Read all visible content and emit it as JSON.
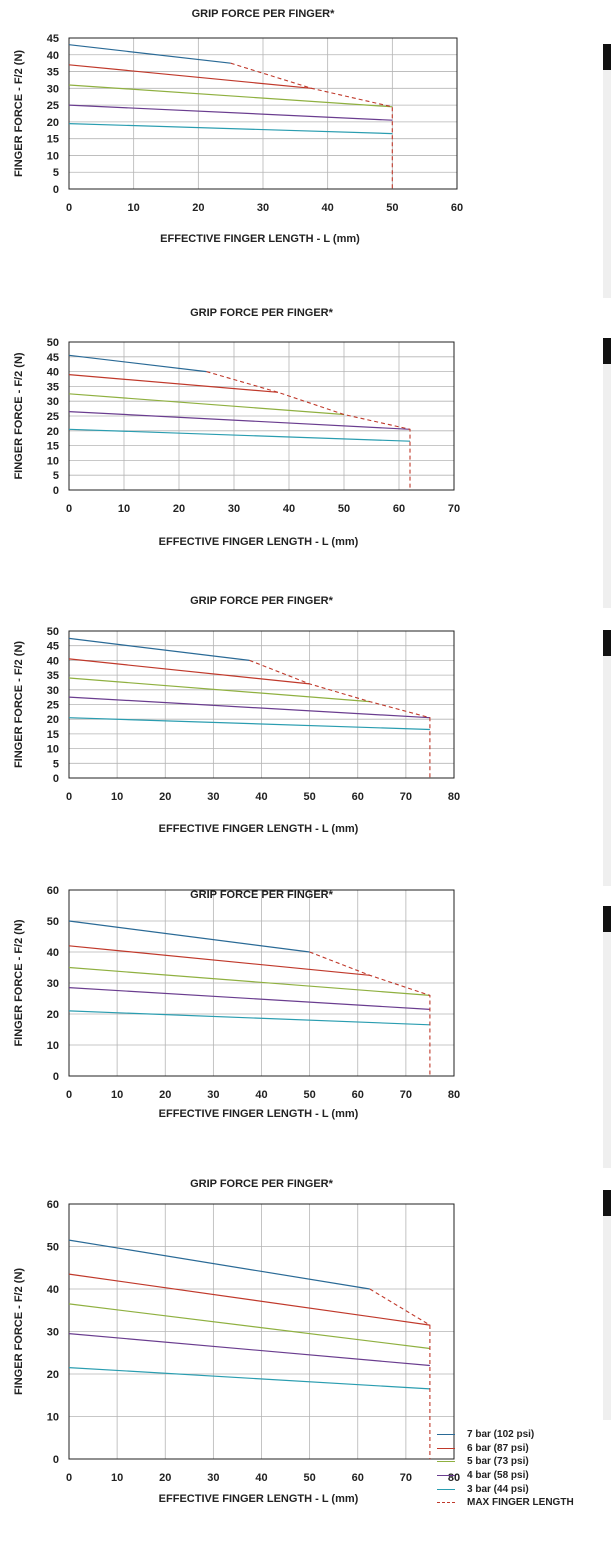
{
  "colors": {
    "7 bar (102 psi)": "#2a6a96",
    "6 bar (87 psi)": "#c0392b",
    "5 bar (73 psi)": "#8fb040",
    "4 bar (58 psi)": "#6a3d8f",
    "3 bar (44 psi)": "#2a9db0",
    "MAX FINGER LENGTH": "#c0392b",
    "grid": "#b5b5b5",
    "side_panel": "#efefef",
    "side_panel_header": "#111111"
  },
  "legend": [
    {
      "label": "7 bar (102 psi)",
      "style": "solid"
    },
    {
      "label": "6 bar (87 psi)",
      "style": "solid"
    },
    {
      "label": "5 bar (73 psi)",
      "style": "solid"
    },
    {
      "label": "4 bar (58 psi)",
      "style": "solid"
    },
    {
      "label": "3 bar (44 psi)",
      "style": "solid"
    },
    {
      "label": "MAX FINGER LENGTH",
      "style": "dashed"
    }
  ],
  "chart_data": [
    {
      "type": "line",
      "title": "GRIP FORCE PER FINGER*",
      "xlabel": "EFFECTIVE FINGER LENGTH - L (mm)",
      "ylabel": "FINGER FORCE - F/2 (N)",
      "xlim": [
        0,
        60
      ],
      "ylim": [
        0,
        45
      ],
      "xticks": [
        0,
        10,
        20,
        30,
        40,
        50,
        60
      ],
      "yticks": [
        0,
        5,
        10,
        15,
        20,
        25,
        30,
        35,
        40,
        45
      ],
      "grid": true,
      "series": [
        {
          "name": "7 bar (102 psi)",
          "x": [
            0,
            25
          ],
          "y": [
            43,
            37.5
          ]
        },
        {
          "name": "6 bar (87 psi)",
          "x": [
            0,
            37.5
          ],
          "y": [
            37,
            30
          ]
        },
        {
          "name": "5 bar (73 psi)",
          "x": [
            0,
            50
          ],
          "y": [
            31,
            24.5
          ]
        },
        {
          "name": "4 bar (58 psi)",
          "x": [
            0,
            50
          ],
          "y": [
            25,
            20.5
          ]
        },
        {
          "name": "3 bar (44 psi)",
          "x": [
            0,
            50
          ],
          "y": [
            19.5,
            16.5
          ]
        }
      ],
      "max_finger_length": {
        "x": [
          25,
          37.5,
          50,
          50
        ],
        "y": [
          37.5,
          30,
          24.5,
          0
        ]
      }
    },
    {
      "type": "line",
      "title": "GRIP FORCE PER FINGER*",
      "xlabel": "EFFECTIVE FINGER LENGTH - L (mm)",
      "ylabel": "FINGER FORCE - F/2 (N)",
      "xlim": [
        0,
        70
      ],
      "ylim": [
        0,
        50
      ],
      "xticks": [
        0,
        10,
        20,
        30,
        40,
        50,
        60,
        70
      ],
      "yticks": [
        0,
        5,
        10,
        15,
        20,
        25,
        30,
        35,
        40,
        45,
        50
      ],
      "grid": true,
      "series": [
        {
          "name": "7 bar (102 psi)",
          "x": [
            0,
            25
          ],
          "y": [
            45.5,
            40
          ]
        },
        {
          "name": "6 bar (87 psi)",
          "x": [
            0,
            38
          ],
          "y": [
            39,
            33
          ]
        },
        {
          "name": "5 bar (73 psi)",
          "x": [
            0,
            50
          ],
          "y": [
            32.5,
            25.5
          ]
        },
        {
          "name": "4 bar (58 psi)",
          "x": [
            0,
            62
          ],
          "y": [
            26.5,
            20.5
          ]
        },
        {
          "name": "3 bar (44 psi)",
          "x": [
            0,
            62
          ],
          "y": [
            20.5,
            16.5
          ]
        }
      ],
      "max_finger_length": {
        "x": [
          25,
          38,
          50,
          62,
          62
        ],
        "y": [
          40,
          33,
          25.5,
          20.5,
          0
        ]
      }
    },
    {
      "type": "line",
      "title": "GRIP FORCE PER FINGER*",
      "xlabel": "EFFECTIVE FINGER LENGTH - L (mm)",
      "ylabel": "FINGER FORCE - F/2 (N)",
      "xlim": [
        0,
        80
      ],
      "ylim": [
        0,
        50
      ],
      "xticks": [
        0,
        10,
        20,
        30,
        40,
        50,
        60,
        70,
        80
      ],
      "yticks": [
        0,
        5,
        10,
        15,
        20,
        25,
        30,
        35,
        40,
        45,
        50
      ],
      "grid": true,
      "series": [
        {
          "name": "7 bar (102 psi)",
          "x": [
            0,
            37.5
          ],
          "y": [
            47.5,
            40
          ]
        },
        {
          "name": "6 bar (87 psi)",
          "x": [
            0,
            50
          ],
          "y": [
            40.5,
            32
          ]
        },
        {
          "name": "5 bar (73 psi)",
          "x": [
            0,
            62.5
          ],
          "y": [
            34,
            26
          ]
        },
        {
          "name": "4 bar (58 psi)",
          "x": [
            0,
            75
          ],
          "y": [
            27.5,
            20.5
          ]
        },
        {
          "name": "3 bar (44 psi)",
          "x": [
            0,
            75
          ],
          "y": [
            20.5,
            16.5
          ]
        }
      ],
      "max_finger_length": {
        "x": [
          37.5,
          50,
          62.5,
          75,
          75
        ],
        "y": [
          40,
          32,
          26,
          20.5,
          0
        ]
      }
    },
    {
      "type": "line",
      "title": "GRIP FORCE PER FINGER*",
      "xlabel": "EFFECTIVE FINGER LENGTH - L (mm)",
      "ylabel": "FINGER FORCE - F/2 (N)",
      "xlim": [
        0,
        80
      ],
      "ylim": [
        0,
        60
      ],
      "xticks": [
        0,
        10,
        20,
        30,
        40,
        50,
        60,
        70,
        80
      ],
      "yticks": [
        0,
        10,
        20,
        30,
        40,
        50,
        60
      ],
      "grid": true,
      "series": [
        {
          "name": "7 bar (102 psi)",
          "x": [
            0,
            50
          ],
          "y": [
            50,
            40
          ]
        },
        {
          "name": "6 bar (87 psi)",
          "x": [
            0,
            62.5
          ],
          "y": [
            42,
            32.5
          ]
        },
        {
          "name": "5 bar (73 psi)",
          "x": [
            0,
            75
          ],
          "y": [
            35,
            26
          ]
        },
        {
          "name": "4 bar (58 psi)",
          "x": [
            0,
            75
          ],
          "y": [
            28.5,
            21.5
          ]
        },
        {
          "name": "3 bar (44 psi)",
          "x": [
            0,
            75
          ],
          "y": [
            21,
            16.5
          ]
        }
      ],
      "max_finger_length": {
        "x": [
          50,
          62.5,
          75,
          75
        ],
        "y": [
          40,
          32.5,
          26,
          0
        ]
      }
    },
    {
      "type": "line",
      "title": "GRIP FORCE PER FINGER*",
      "xlabel": "EFFECTIVE FINGER LENGTH - L (mm)",
      "ylabel": "FINGER FORCE - F/2 (N)",
      "xlim": [
        0,
        80
      ],
      "ylim": [
        0,
        60
      ],
      "xticks": [
        0,
        10,
        20,
        30,
        40,
        50,
        60,
        70,
        80
      ],
      "yticks": [
        0,
        10,
        20,
        30,
        40,
        50,
        60
      ],
      "grid": true,
      "series": [
        {
          "name": "7 bar (102 psi)",
          "x": [
            0,
            62.5
          ],
          "y": [
            51.5,
            40
          ]
        },
        {
          "name": "6 bar (87 psi)",
          "x": [
            0,
            75
          ],
          "y": [
            43.5,
            31.5
          ]
        },
        {
          "name": "5 bar (73 psi)",
          "x": [
            0,
            75
          ],
          "y": [
            36.5,
            26
          ]
        },
        {
          "name": "4 bar (58 psi)",
          "x": [
            0,
            75
          ],
          "y": [
            29.5,
            22
          ]
        },
        {
          "name": "3 bar (44 psi)",
          "x": [
            0,
            75
          ],
          "y": [
            21.5,
            16.5
          ]
        }
      ],
      "max_finger_length": {
        "x": [
          62.5,
          75,
          75
        ],
        "y": [
          40,
          31.5,
          0
        ]
      }
    }
  ]
}
